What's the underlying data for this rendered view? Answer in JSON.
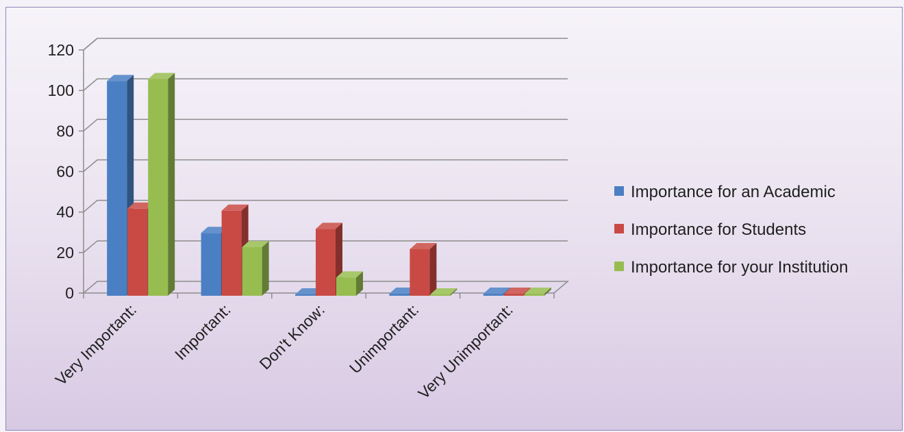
{
  "chart_data": {
    "type": "bar",
    "style": "3d-clustered-column",
    "categories": [
      "Very Important:",
      "Important:",
      "Don't Know:",
      "Unimportant:",
      "Very Unimportant:"
    ],
    "series": [
      {
        "name": "Importance for an Academic",
        "color": "#4a7fc3",
        "values": [
          106,
          31,
          0,
          1,
          1
        ]
      },
      {
        "name": "Importance for Students",
        "color": "#c94a44",
        "values": [
          43,
          42,
          33,
          23,
          1
        ]
      },
      {
        "name": "Importance for your Institution",
        "color": "#97bd51",
        "values": [
          107,
          24,
          9,
          0,
          1
        ]
      }
    ],
    "ylim": [
      0,
      120
    ],
    "yticks": [
      0,
      20,
      40,
      60,
      80,
      100,
      120
    ],
    "grid": true,
    "legend_position": "right"
  }
}
